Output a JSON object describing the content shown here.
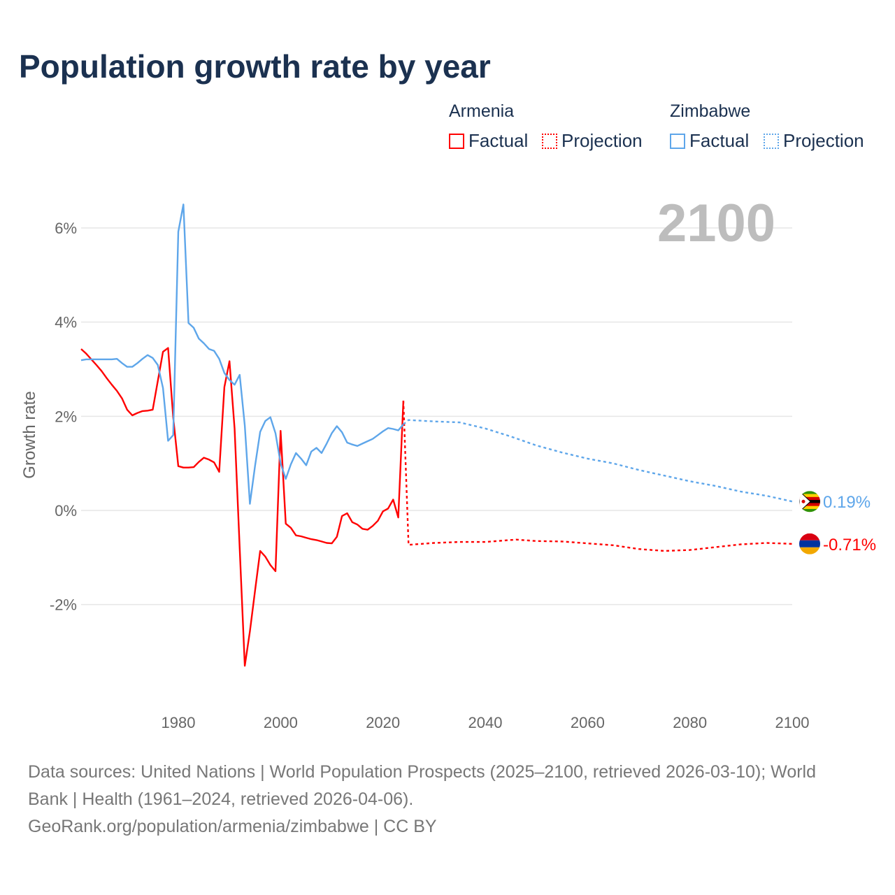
{
  "title": "Population growth rate by year",
  "big_year": "2100",
  "legend": {
    "groups": [
      {
        "name": "Armenia",
        "factual": "Factual",
        "projection": "Projection",
        "color": "#ff0000"
      },
      {
        "name": "Zimbabwe",
        "factual": "Factual",
        "projection": "Projection",
        "color": "#5ea6ea"
      }
    ]
  },
  "source": {
    "line1": "Data sources: United Nations | World Population Prospects (2025–2100, retrieved 2026-03-10); World",
    "line2": "Bank | Health (1961–2024, retrieved 2026-04-06).",
    "line3": "GeoRank.org/population/armenia/zimbabwe | CC BY"
  },
  "chart_data": {
    "type": "line",
    "title": "Population growth rate by year",
    "xlabel": "",
    "ylabel": "Growth rate",
    "xlim": [
      1961,
      2100
    ],
    "ylim": [
      -4,
      7
    ],
    "x_ticks": [
      1980,
      2000,
      2020,
      2040,
      2060,
      2080,
      2100
    ],
    "x_tick_labels": [
      "1980",
      "2000",
      "2020",
      "2040",
      "2060",
      "2080",
      "2100"
    ],
    "y_ticks": [
      6,
      4,
      2,
      0,
      -2
    ],
    "y_tick_labels": [
      "6%",
      "4%",
      "2%",
      "0%",
      "-2%"
    ],
    "grid": true,
    "series": [
      {
        "name": "Armenia Factual",
        "color": "#ff0000",
        "style": "solid",
        "x_start": 1961,
        "values": [
          3.43,
          3.33,
          3.21,
          3.09,
          2.96,
          2.81,
          2.67,
          2.54,
          2.38,
          2.14,
          2.02,
          2.07,
          2.11,
          2.12,
          2.14,
          2.75,
          3.37,
          3.45,
          1.98,
          0.94,
          0.91,
          0.91,
          0.92,
          1.03,
          1.12,
          1.08,
          1.02,
          0.82,
          2.62,
          3.17,
          1.74,
          -0.8,
          -3.3,
          -2.57,
          -1.7,
          -0.86,
          -0.98,
          -1.16,
          -1.29,
          1.69,
          -0.28,
          -0.37,
          -0.53,
          -0.55,
          -0.58,
          -0.61,
          -0.63,
          -0.66,
          -0.69,
          -0.7,
          -0.56,
          -0.12,
          -0.06,
          -0.25,
          -0.3,
          -0.39,
          -0.41,
          -0.33,
          -0.22,
          -0.02,
          0.04,
          0.23,
          -0.15,
          2.33
        ]
      },
      {
        "name": "Zimbabwe Factual",
        "color": "#5ea6ea",
        "style": "solid",
        "x_start": 1961,
        "values": [
          3.19,
          3.21,
          3.21,
          3.21,
          3.21,
          3.21,
          3.21,
          3.22,
          3.13,
          3.05,
          3.05,
          3.13,
          3.22,
          3.3,
          3.24,
          3.09,
          2.6,
          1.48,
          1.6,
          5.92,
          6.5,
          3.98,
          3.88,
          3.65,
          3.55,
          3.43,
          3.39,
          3.22,
          2.92,
          2.77,
          2.67,
          2.88,
          1.8,
          0.14,
          0.95,
          1.67,
          1.9,
          1.98,
          1.64,
          1.0,
          0.67,
          0.98,
          1.22,
          1.1,
          0.96,
          1.25,
          1.33,
          1.22,
          1.42,
          1.64,
          1.79,
          1.66,
          1.44,
          1.4,
          1.37,
          1.42,
          1.47,
          1.52,
          1.6,
          1.68,
          1.75,
          1.73,
          1.7,
          1.83
        ]
      },
      {
        "name": "Armenia Projection",
        "color": "#ff0000",
        "style": "dotted",
        "x": [
          2024,
          2025,
          2030,
          2035,
          2040,
          2046,
          2050,
          2055,
          2060,
          2065,
          2070,
          2075,
          2080,
          2085,
          2090,
          2095,
          2100
        ],
        "values": [
          2.33,
          -0.73,
          -0.69,
          -0.67,
          -0.67,
          -0.62,
          -0.65,
          -0.66,
          -0.7,
          -0.74,
          -0.82,
          -0.86,
          -0.84,
          -0.78,
          -0.72,
          -0.69,
          -0.71
        ]
      },
      {
        "name": "Zimbabwe Projection",
        "color": "#5ea6ea",
        "style": "dotted",
        "x": [
          2024,
          2025,
          2030,
          2035,
          2040,
          2045,
          2050,
          2055,
          2060,
          2065,
          2070,
          2075,
          2080,
          2085,
          2090,
          2095,
          2100
        ],
        "values": [
          1.83,
          1.92,
          1.89,
          1.87,
          1.74,
          1.57,
          1.38,
          1.23,
          1.1,
          1.0,
          0.86,
          0.74,
          0.62,
          0.52,
          0.4,
          0.31,
          0.19
        ]
      }
    ],
    "end_labels": [
      {
        "country": "Zimbabwe",
        "text": "0.19%",
        "value": 0.19,
        "color": "#5ea6ea"
      },
      {
        "country": "Armenia",
        "text": "-0.71%",
        "value": -0.71,
        "color": "#ff0000"
      }
    ]
  }
}
